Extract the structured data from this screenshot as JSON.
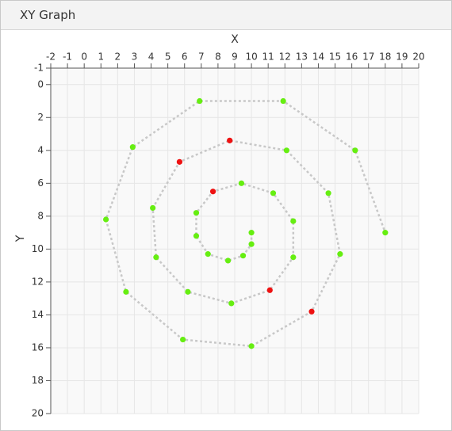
{
  "panel": {
    "title": "XY Graph"
  },
  "chart_data": {
    "type": "line",
    "xlabel": "X",
    "ylabel": "Y",
    "x": [
      10.0,
      10.0,
      9.5,
      8.6,
      7.4,
      6.7,
      6.7,
      7.7,
      9.4,
      11.3,
      12.5,
      12.5,
      11.1,
      8.8,
      6.2,
      4.3,
      4.1,
      5.7,
      8.7,
      12.1,
      14.6,
      15.3,
      13.6,
      10.0,
      5.9,
      2.5,
      1.3,
      2.9,
      6.9,
      11.9,
      16.2,
      18.0
    ],
    "series": [
      {
        "color": "#c8c8c8",
        "values": [
          9.0,
          9.7,
          10.4,
          10.7,
          10.3,
          9.2,
          7.8,
          6.5,
          6.0,
          6.6,
          8.3,
          10.5,
          12.5,
          13.3,
          12.6,
          10.5,
          7.5,
          4.7,
          3.4,
          4.0,
          6.6,
          10.3,
          13.8,
          15.9,
          15.5,
          12.6,
          8.2,
          3.8,
          1.0,
          1.0,
          4.0,
          9.0
        ],
        "marker_colors": [
          "#66ee11",
          "#66ee11",
          "#66ee11",
          "#66ee11",
          "#66ee11",
          "#66ee11",
          "#66ee11",
          "#ee1111",
          "#66ee11",
          "#66ee11",
          "#66ee11",
          "#66ee11",
          "#ee1111",
          "#66ee11",
          "#66ee11",
          "#66ee11",
          "#66ee11",
          "#ee1111",
          "#ee1111",
          "#66ee11",
          "#66ee11",
          "#66ee11",
          "#ee1111",
          "#66ee11",
          "#66ee11",
          "#66ee11",
          "#66ee11",
          "#66ee11",
          "#66ee11",
          "#66ee11",
          "#66ee11",
          "#66ee11"
        ]
      }
    ],
    "xlim": [
      -2,
      20
    ],
    "xticks": [
      -2,
      -1,
      0,
      1,
      2,
      3,
      4,
      5,
      6,
      7,
      8,
      9,
      10,
      11,
      12,
      13,
      14,
      15,
      16,
      17,
      18,
      19,
      20
    ],
    "ylim": [
      -1,
      20
    ],
    "yticks": [
      -1,
      0,
      2,
      4,
      6,
      8,
      10,
      12,
      14,
      16,
      18,
      20
    ],
    "y_inverted": true,
    "grid": true
  }
}
